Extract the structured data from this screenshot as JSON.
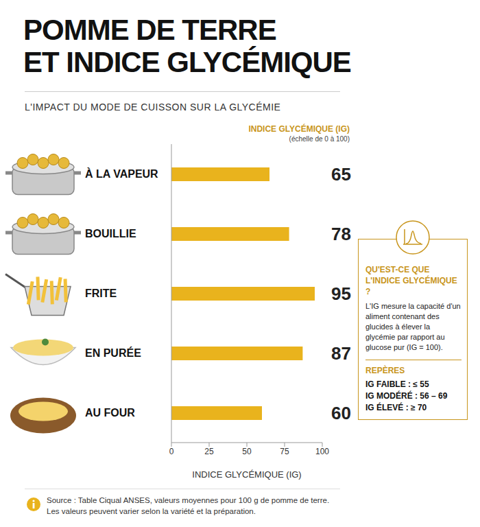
{
  "chart_data": {
    "type": "bar",
    "orientation": "horizontal",
    "title": [
      "POMME DE TERRE",
      "ET INDICE GLYCÉMIQUE"
    ],
    "subtitle": "L'IMPACT DU MODE DE CUISSON SUR LA GLYCÉMIE",
    "value_header": "INDICE GLYCÉMIQUE (IG)",
    "value_header_note": "(échelle de 0 à 100)",
    "categories": [
      "À LA VAPEUR",
      "BOUILLIE",
      "FRITE",
      "EN PURÉE",
      "AU FOUR"
    ],
    "values": [
      65,
      78,
      95,
      87,
      60
    ],
    "color": "#e9b31d",
    "xlim": [
      0,
      100
    ],
    "xticks": [
      0,
      25,
      50,
      75,
      100
    ],
    "xlabel": "INDICE GLYCÉMIQUE (IG)",
    "data_labels": true,
    "grid": false
  },
  "sidebar": {
    "heading": "QU'EST-CE QUE L'INDICE GLYCÉMIQUE ?",
    "body": "L'IG mesure la capacité d'un aliment contenant des glucides à élever la glycémie par rapport au glucose pur (IG = 100).",
    "marks_title": "REPÈRES",
    "marks": [
      "IG FAIBLE : ≤ 55",
      "IG MODÉRÉ : 56 – 69",
      "IG ÉLEVÉ : ≥ 70"
    ]
  },
  "source": [
    "Source : Table Ciqual ANSES, valeurs moyennes pour 100 g de pomme de terre.",
    "Les valeurs peuvent varier selon la variété et la préparation."
  ]
}
